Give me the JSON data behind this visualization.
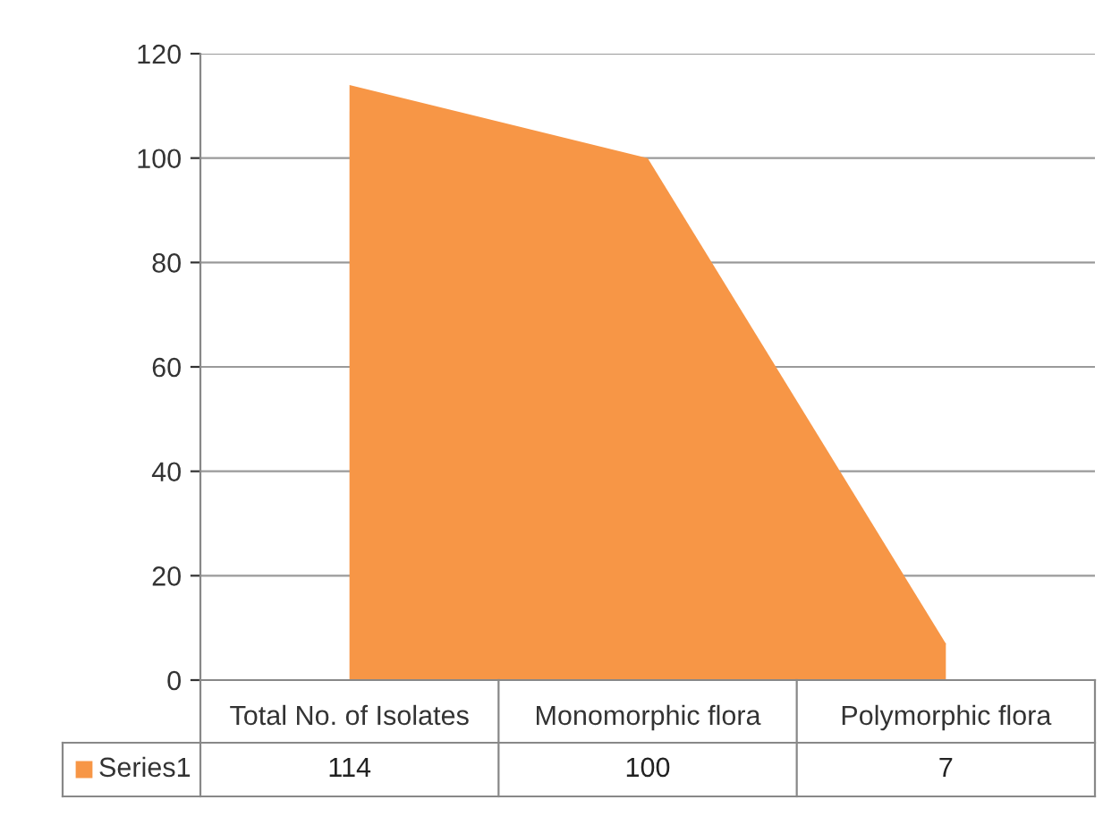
{
  "chart_data": {
    "type": "area",
    "categories": [
      "Total No. of Isolates",
      "Monomorphic flora",
      "Polymorphic flora"
    ],
    "series": [
      {
        "name": "Series1",
        "color": "#f79646",
        "values": [
          114,
          100,
          7
        ]
      }
    ],
    "ylim": [
      0,
      120
    ],
    "yticks": [
      0,
      20,
      40,
      60,
      80,
      100,
      120
    ],
    "grid": "y",
    "data_labels": true,
    "legend": "bottom"
  }
}
